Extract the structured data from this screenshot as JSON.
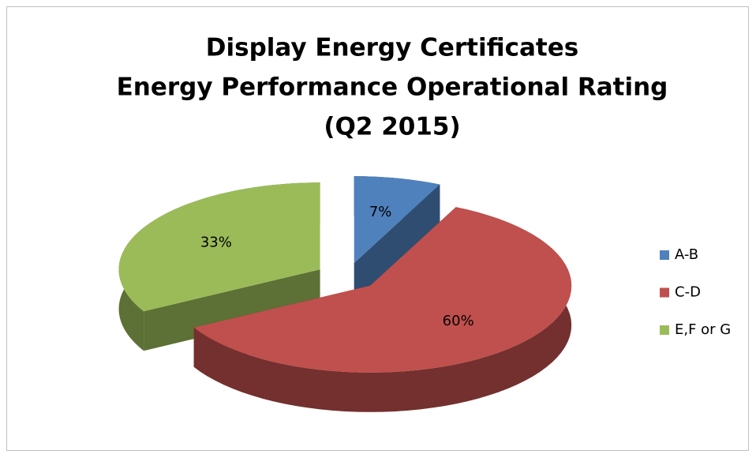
{
  "chart_data": {
    "type": "pie",
    "title": [
      "Display Energy Certificates",
      "Energy Performance Operational Rating",
      "(Q2 2015)"
    ],
    "categories": [
      "A-B",
      "C-D",
      "E,F or G"
    ],
    "values": [
      7,
      60,
      33
    ],
    "value_labels": [
      "7%",
      "60%",
      "33%"
    ],
    "colors": [
      "#4f81bd",
      "#c0504d",
      "#9bbb59"
    ],
    "legend": "right"
  }
}
